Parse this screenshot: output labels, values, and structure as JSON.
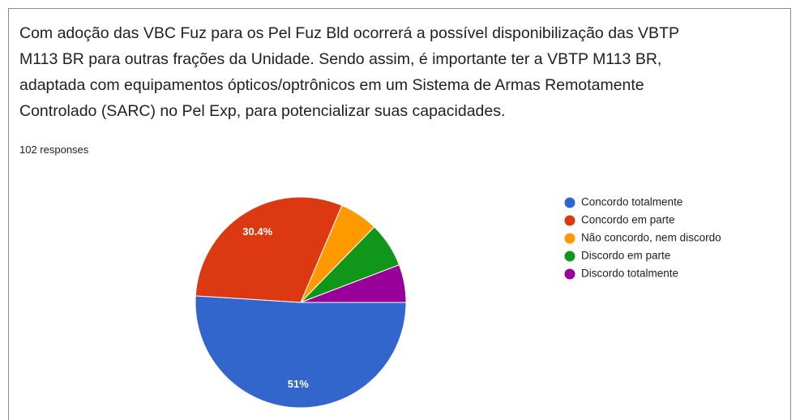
{
  "chart_data": {
    "type": "pie",
    "title": [
      "Com adoção das VBC Fuz para os Pel Fuz Bld ocorrerá a possível disponibilização das VBTP",
      "M113 BR para outras frações da Unidade. Sendo assim, é importante ter a VBTP M113 BR,",
      "adaptada com equipamentos ópticos/optrônicos em um Sistema de Armas Remotamente",
      "Controlado (SARC) no Pel Exp, para potencializar suas capacidades."
    ],
    "subtitle": "102 responses",
    "categories": [
      "Concordo totalmente",
      "Concordo em parte",
      "Não concordo, nem discordo",
      "Discordo em parte",
      "Discordo totalmente"
    ],
    "values": [
      51,
      30.4,
      5.9,
      6.9,
      5.8
    ],
    "value_labels": [
      "51%",
      "30.4%",
      null,
      null,
      null
    ],
    "colors": [
      "#3366cc",
      "#dc3912",
      "#ff9900",
      "#109618",
      "#990099"
    ],
    "legend": "right"
  }
}
